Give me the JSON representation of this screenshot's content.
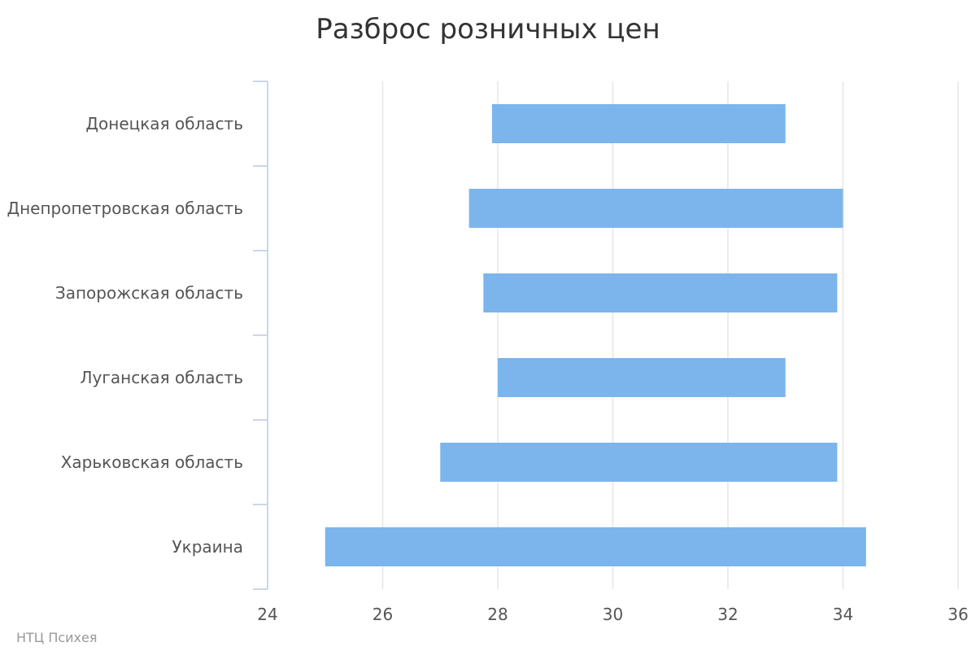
{
  "chart_data": {
    "type": "bar",
    "subtype": "horizontal-range",
    "title": "Разброс розничных цен",
    "credit": "НТЦ Психея",
    "categories": [
      "Донецкая область",
      "Днепропетровская область",
      "Запорожская область",
      "Луганская область",
      "Харьковская область",
      "Украина"
    ],
    "series": [
      {
        "low": [
          27.9,
          27.5,
          27.75,
          28.0,
          27.0,
          25.0
        ],
        "high": [
          33.0,
          34.0,
          33.9,
          33.0,
          33.9,
          34.4
        ]
      }
    ],
    "xlim": [
      24,
      36
    ],
    "xticks": [
      "24",
      "26",
      "28",
      "30",
      "32",
      "34",
      "36"
    ],
    "grid": true,
    "legend": "none",
    "colors": {
      "bar": "#7cb5ec",
      "grid": "#e6e6e6",
      "axis": "#ccd6eb",
      "title": "#333333",
      "labels": "#555555",
      "credit": "#999999"
    }
  }
}
